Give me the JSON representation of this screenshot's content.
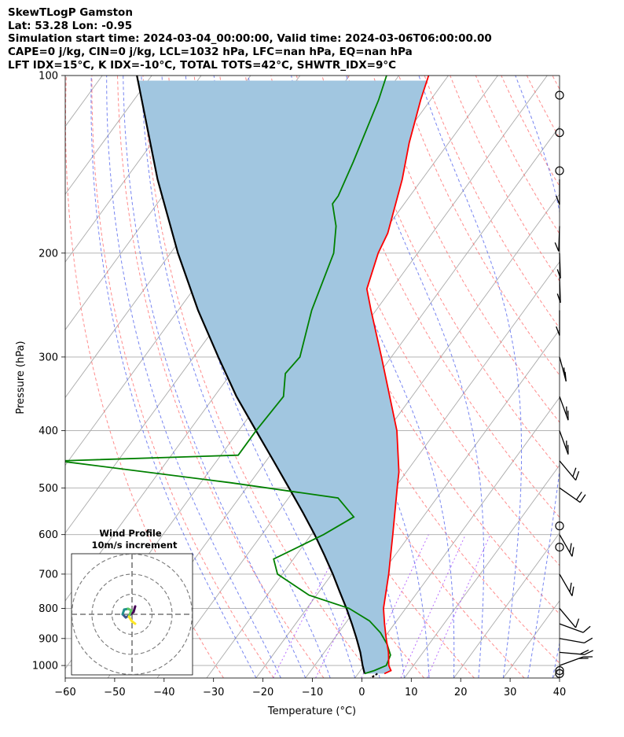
{
  "header": {
    "line1": "SkewTLogP Gamston",
    "line2": "Lat: 53.28   Lon: -0.95",
    "line3": "Simulation start time: 2024-03-04_00:00:00, Valid time: 2024-03-06T06:00:00.00",
    "line4": "CAPE=0 j/kg, CIN=0 j/kg, LCL=1032 hPa, LFC=nan hPa, EQ=nan hPa",
    "line5": "LFT IDX=15°C, K IDX=-10°C, TOTAL TOTS=42°C, SHWTR_IDX=9°C"
  },
  "colors": {
    "temperature": "#ff0000",
    "dewpoint": "#008000",
    "parcel": "#000000",
    "shade": "#a1c6e0",
    "dry_adiabat": "#ff6666",
    "moist_adiabat": "#5566ee",
    "mixing_ratio": "#9b30ff",
    "isotherm": "#aaaaaa",
    "isobar": "#aaaaaa"
  },
  "chart_data": {
    "type": "skew-t",
    "xlabel": "Temperature (°C)",
    "ylabel": "Pressure (hPa)",
    "xlim": [
      -60,
      40
    ],
    "ylim": [
      1050,
      100
    ],
    "x_ticks": [
      -60,
      -50,
      -40,
      -30,
      -20,
      -10,
      0,
      10,
      20,
      30,
      40
    ],
    "x_tick_labels": [
      "−60",
      "−50",
      "−40",
      "−30",
      "−20",
      "−10",
      "0",
      "10",
      "20",
      "30",
      "40"
    ],
    "y_ticks": [
      1000,
      900,
      800,
      700,
      600,
      500,
      400,
      300,
      200,
      100
    ],
    "y_tick_labels": [
      "1000",
      "900",
      "800",
      "700",
      "600",
      "500",
      "400",
      "300",
      "200",
      "100"
    ],
    "series": [
      {
        "name": "Temperature",
        "points": [
          [
            1032,
            5.3
          ],
          [
            1020,
            6.2
          ],
          [
            1000,
            5.0
          ],
          [
            950,
            3.0
          ],
          [
            900,
            0.5
          ],
          [
            850,
            -2.0
          ],
          [
            800,
            -4.5
          ],
          [
            700,
            -8.5
          ],
          [
            600,
            -13.5
          ],
          [
            500,
            -19.5
          ],
          [
            470,
            -21.5
          ],
          [
            400,
            -28.0
          ],
          [
            300,
            -42.0
          ],
          [
            250,
            -51.0
          ],
          [
            230,
            -55.0
          ],
          [
            200,
            -58.0
          ],
          [
            185,
            -59.0
          ],
          [
            150,
            -64.0
          ],
          [
            130,
            -68.0
          ],
          [
            110,
            -72.0
          ],
          [
            100,
            -74.0
          ]
        ]
      },
      {
        "name": "Dewpoint",
        "points": [
          [
            1032,
            1.3
          ],
          [
            1020,
            2.8
          ],
          [
            1000,
            4.5
          ],
          [
            960,
            3.8
          ],
          [
            920,
            1.5
          ],
          [
            880,
            -1.5
          ],
          [
            840,
            -5.5
          ],
          [
            800,
            -11.5
          ],
          [
            760,
            -21.5
          ],
          [
            700,
            -31.0
          ],
          [
            660,
            -34.0
          ],
          [
            600,
            -27.5
          ],
          [
            560,
            -24.0
          ],
          [
            520,
            -30.0
          ],
          [
            490,
            -54.0
          ],
          [
            450,
            -92.0
          ],
          [
            440,
            -56.5
          ],
          [
            400,
            -56.5
          ],
          [
            350,
            -56.0
          ],
          [
            320,
            -59.0
          ],
          [
            300,
            -58.5
          ],
          [
            250,
            -63.0
          ],
          [
            200,
            -67.0
          ],
          [
            180,
            -70.5
          ],
          [
            165,
            -74.5
          ],
          [
            160,
            -74.5
          ],
          [
            140,
            -76.5
          ],
          [
            110,
            -80.5
          ],
          [
            100,
            -82.5
          ]
        ]
      },
      {
        "name": "Parcel",
        "points": [
          [
            1032,
            1.3
          ],
          [
            1000,
            -0.3
          ],
          [
            950,
            -2.7
          ],
          [
            900,
            -5.5
          ],
          [
            850,
            -8.6
          ],
          [
            800,
            -12.0
          ],
          [
            750,
            -15.8
          ],
          [
            700,
            -19.8
          ],
          [
            650,
            -24.3
          ],
          [
            600,
            -29.3
          ],
          [
            550,
            -35.0
          ],
          [
            500,
            -41.4
          ],
          [
            450,
            -48.5
          ],
          [
            400,
            -56.5
          ],
          [
            350,
            -65.5
          ],
          [
            300,
            -75.0
          ],
          [
            250,
            -86.0
          ],
          [
            200,
            -98.5
          ],
          [
            150,
            -113.5
          ],
          [
            100,
            -133.0
          ]
        ]
      }
    ],
    "wind_barbs_hpa": [
      1032,
      1020,
      1000,
      950,
      900,
      850,
      800,
      700,
      600,
      500,
      450,
      400,
      350,
      300,
      250,
      220,
      200,
      180,
      150,
      130,
      110
    ],
    "wind_calm_hpa": [
      1032,
      1020,
      630,
      580,
      145,
      125,
      108
    ],
    "hodograph": {
      "title": "Wind Profile",
      "subtitle": "10m/s increment",
      "rings": [
        10,
        20,
        30
      ],
      "trace_colors": [
        "#440154",
        "#3b528b",
        "#21918c",
        "#5ec962",
        "#fde725"
      ]
    }
  }
}
